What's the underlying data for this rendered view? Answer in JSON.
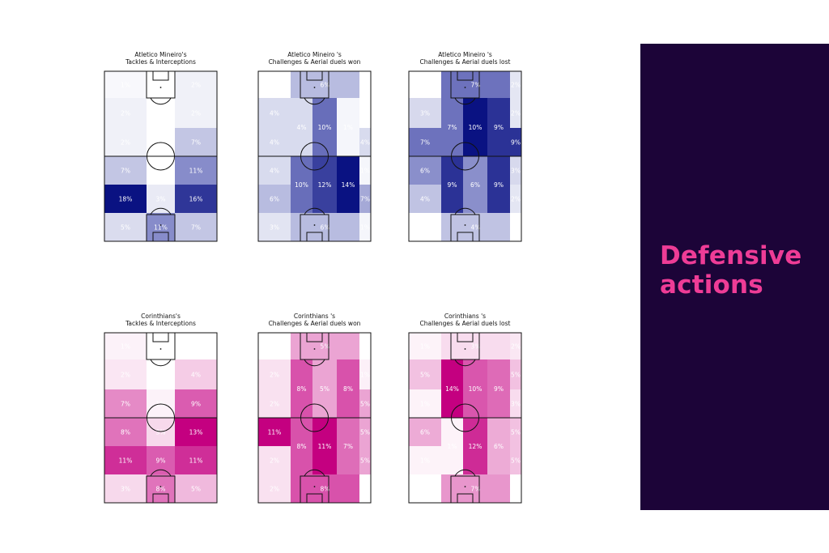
{
  "panel": {
    "title_line1": "Defensive",
    "title_line2": "actions",
    "background": "#1c0438",
    "title_color": "#ee3c96"
  },
  "chart_data": [
    {
      "type": "heatmap",
      "team": "Atletico Mineiro",
      "title_line1": "Atletico Mineiro's",
      "title_line2": "Tackles & Interceptions",
      "colormap": "blue",
      "cells": [
        {
          "zone": "1-1",
          "value": 1,
          "label": "1%"
        },
        {
          "zone": "1-2",
          "value": 0,
          "label": "0%"
        },
        {
          "zone": "1-3",
          "value": 2,
          "label": "2%"
        },
        {
          "zone": "2-1",
          "value": 2,
          "label": "2%"
        },
        {
          "zone": "2-2",
          "value": 0,
          "label": "0%"
        },
        {
          "zone": "2-3",
          "value": 2,
          "label": "2%"
        },
        {
          "zone": "3-1",
          "value": 2,
          "label": "2%"
        },
        {
          "zone": "3-2",
          "value": 0,
          "label": "0%"
        },
        {
          "zone": "3-3",
          "value": 7,
          "label": "7%"
        },
        {
          "zone": "4-1",
          "value": 7,
          "label": "7%"
        },
        {
          "zone": "4-2",
          "value": 0,
          "label": "0%"
        },
        {
          "zone": "4-3",
          "value": 11,
          "label": "11%"
        },
        {
          "zone": "5-1",
          "value": 18,
          "label": "18%"
        },
        {
          "zone": "5-2",
          "value": 3,
          "label": "3%"
        },
        {
          "zone": "5-3",
          "value": 16,
          "label": "16%"
        },
        {
          "zone": "6-1",
          "value": 5,
          "label": "5%"
        },
        {
          "zone": "6-2",
          "value": 11,
          "label": "11%"
        },
        {
          "zone": "6-3",
          "value": 7,
          "label": "7%"
        }
      ]
    },
    {
      "type": "heatmap",
      "team": "Atletico Mineiro",
      "title_line1": "Atletico Mineiro 's",
      "title_line2": "Challenges & Aerial duels won",
      "colormap": "blue",
      "cells": [
        {
          "zone": "1-1",
          "value": 0,
          "label": "0%"
        },
        {
          "zone": "1-3",
          "value": 6,
          "label": "6%"
        },
        {
          "zone": "1-5",
          "value": 0,
          "label": "0%"
        },
        {
          "zone": "2-1",
          "value": 4,
          "label": "4%"
        },
        {
          "zone": "2-2",
          "value": 4,
          "label": "4%"
        },
        {
          "zone": "2-3",
          "value": 10,
          "label": "10%"
        },
        {
          "zone": "2-4",
          "value": 1,
          "label": "1%"
        },
        {
          "zone": "2-5",
          "value": 0,
          "label": "0%"
        },
        {
          "zone": "3-1",
          "value": 4,
          "label": "4%"
        },
        {
          "zone": "3-5",
          "value": 4,
          "label": "4%"
        },
        {
          "zone": "4-1",
          "value": 4,
          "label": "4%"
        },
        {
          "zone": "4-2",
          "value": 10,
          "label": "10%"
        },
        {
          "zone": "4-3",
          "value": 12,
          "label": "12%"
        },
        {
          "zone": "4-4",
          "value": 14,
          "label": "14%"
        },
        {
          "zone": "4-5",
          "value": 1,
          "label": "1%"
        },
        {
          "zone": "5-1",
          "value": 6,
          "label": "6%"
        },
        {
          "zone": "5-5",
          "value": 7,
          "label": "7%"
        },
        {
          "zone": "6-1",
          "value": 3,
          "label": "3%"
        },
        {
          "zone": "6-3",
          "value": 6,
          "label": "6%"
        },
        {
          "zone": "6-5",
          "value": 1,
          "label": "1%"
        }
      ]
    },
    {
      "type": "heatmap",
      "team": "Atletico Mineiro",
      "title_line1": "Atletico Mineiro 's",
      "title_line2": "Challenges & Aerial duels lost",
      "colormap": "blue",
      "cells": [
        {
          "zone": "1-1",
          "value": 0,
          "label": "0%"
        },
        {
          "zone": "1-3",
          "value": 7,
          "label": "7%"
        },
        {
          "zone": "1-5",
          "value": 2,
          "label": "2%"
        },
        {
          "zone": "2-1",
          "value": 3,
          "label": "3%"
        },
        {
          "zone": "2-2",
          "value": 7,
          "label": "7%"
        },
        {
          "zone": "2-3",
          "value": 10,
          "label": "10%"
        },
        {
          "zone": "2-4",
          "value": 9,
          "label": "9%"
        },
        {
          "zone": "2-5",
          "value": 2,
          "label": "2%"
        },
        {
          "zone": "3-1",
          "value": 7,
          "label": "7%"
        },
        {
          "zone": "3-5",
          "value": 9,
          "label": "9%"
        },
        {
          "zone": "4-1",
          "value": 6,
          "label": "6%"
        },
        {
          "zone": "4-2",
          "value": 9,
          "label": "9%"
        },
        {
          "zone": "4-3",
          "value": 6,
          "label": "6%"
        },
        {
          "zone": "4-4",
          "value": 9,
          "label": "9%"
        },
        {
          "zone": "4-5",
          "value": 3,
          "label": "3%"
        },
        {
          "zone": "5-1",
          "value": 4,
          "label": "4%"
        },
        {
          "zone": "5-5",
          "value": 2,
          "label": "2%"
        },
        {
          "zone": "6-1",
          "value": 0,
          "label": "0%"
        },
        {
          "zone": "6-3",
          "value": 4,
          "label": "4%"
        },
        {
          "zone": "6-5",
          "value": 0,
          "label": "0%"
        }
      ]
    },
    {
      "type": "heatmap",
      "team": "Corinthians",
      "title_line1": "Corinthians's",
      "title_line2": "Tackles & Interceptions",
      "colormap": "pink",
      "cells": [
        {
          "zone": "1-1",
          "value": 1,
          "label": "1%"
        },
        {
          "zone": "1-2",
          "value": 0,
          "label": "0%"
        },
        {
          "zone": "1-3",
          "value": 0,
          "label": "0%"
        },
        {
          "zone": "2-1",
          "value": 2,
          "label": "2%"
        },
        {
          "zone": "2-2",
          "value": 0,
          "label": "0%"
        },
        {
          "zone": "2-3",
          "value": 4,
          "label": "4%"
        },
        {
          "zone": "3-1",
          "value": 7,
          "label": "7%"
        },
        {
          "zone": "3-2",
          "value": 1,
          "label": "1%"
        },
        {
          "zone": "3-3",
          "value": 9,
          "label": "9%"
        },
        {
          "zone": "4-1",
          "value": 8,
          "label": "8%"
        },
        {
          "zone": "4-2",
          "value": 3,
          "label": "3%"
        },
        {
          "zone": "4-3",
          "value": 13,
          "label": "13%"
        },
        {
          "zone": "5-1",
          "value": 11,
          "label": "11%"
        },
        {
          "zone": "5-2",
          "value": 9,
          "label": "9%"
        },
        {
          "zone": "5-3",
          "value": 11,
          "label": "11%"
        },
        {
          "zone": "6-1",
          "value": 3,
          "label": "3%"
        },
        {
          "zone": "6-2",
          "value": 8,
          "label": "8%"
        },
        {
          "zone": "6-3",
          "value": 5,
          "label": "5%"
        }
      ]
    },
    {
      "type": "heatmap",
      "team": "Corinthians",
      "title_line1": "Corinthians 's",
      "title_line2": "Challenges & Aerial duels won",
      "colormap": "pink",
      "cells": [
        {
          "zone": "1-1",
          "value": 0,
          "label": "0%"
        },
        {
          "zone": "1-3",
          "value": 5,
          "label": "5%"
        },
        {
          "zone": "1-5",
          "value": 0,
          "label": "0%"
        },
        {
          "zone": "2-1",
          "value": 2,
          "label": "2%"
        },
        {
          "zone": "2-2",
          "value": 8,
          "label": "8%"
        },
        {
          "zone": "2-3",
          "value": 5,
          "label": "5%"
        },
        {
          "zone": "2-4",
          "value": 8,
          "label": "8%"
        },
        {
          "zone": "2-5",
          "value": 1,
          "label": "1%"
        },
        {
          "zone": "3-1",
          "value": 2,
          "label": "2%"
        },
        {
          "zone": "3-5",
          "value": 5,
          "label": "5%"
        },
        {
          "zone": "4-1",
          "value": 11,
          "label": "11%"
        },
        {
          "zone": "4-2",
          "value": 8,
          "label": "8%"
        },
        {
          "zone": "4-3",
          "value": 11,
          "label": "11%"
        },
        {
          "zone": "4-4",
          "value": 7,
          "label": "7%"
        },
        {
          "zone": "4-5",
          "value": 5,
          "label": "5%"
        },
        {
          "zone": "5-1",
          "value": 2,
          "label": "2%"
        },
        {
          "zone": "5-5",
          "value": 5,
          "label": "5%"
        },
        {
          "zone": "6-1",
          "value": 2,
          "label": "2%"
        },
        {
          "zone": "6-3",
          "value": 8,
          "label": "8%"
        },
        {
          "zone": "6-5",
          "value": 0,
          "label": "0%"
        }
      ]
    },
    {
      "type": "heatmap",
      "team": "Corinthians",
      "title_line1": "Corinthians 's",
      "title_line2": "Challenges & Aerial duels lost",
      "colormap": "pink",
      "cells": [
        {
          "zone": "1-1",
          "value": 1,
          "label": "1%"
        },
        {
          "zone": "1-3",
          "value": 3,
          "label": "3%"
        },
        {
          "zone": "1-5",
          "value": 2,
          "label": "2%"
        },
        {
          "zone": "2-1",
          "value": 5,
          "label": "5%"
        },
        {
          "zone": "2-2",
          "value": 14,
          "label": "14%"
        },
        {
          "zone": "2-3",
          "value": 10,
          "label": "10%"
        },
        {
          "zone": "2-4",
          "value": 9,
          "label": "9%"
        },
        {
          "zone": "2-5",
          "value": 5,
          "label": "5%"
        },
        {
          "zone": "3-1",
          "value": 1,
          "label": "1%"
        },
        {
          "zone": "3-5",
          "value": 3,
          "label": "3%"
        },
        {
          "zone": "4-1",
          "value": 6,
          "label": "6%"
        },
        {
          "zone": "4-2",
          "value": 1,
          "label": "1%"
        },
        {
          "zone": "4-3",
          "value": 12,
          "label": "12%"
        },
        {
          "zone": "4-4",
          "value": 6,
          "label": "6%"
        },
        {
          "zone": "4-5",
          "value": 5,
          "label": "5%"
        },
        {
          "zone": "5-1",
          "value": 1,
          "label": "1%"
        },
        {
          "zone": "5-5",
          "value": 5,
          "label": "5%"
        },
        {
          "zone": "6-1",
          "value": 0,
          "label": "0%"
        },
        {
          "zone": "6-3",
          "value": 7,
          "label": "7%"
        },
        {
          "zone": "6-5",
          "value": 0,
          "label": "0%"
        }
      ]
    }
  ]
}
